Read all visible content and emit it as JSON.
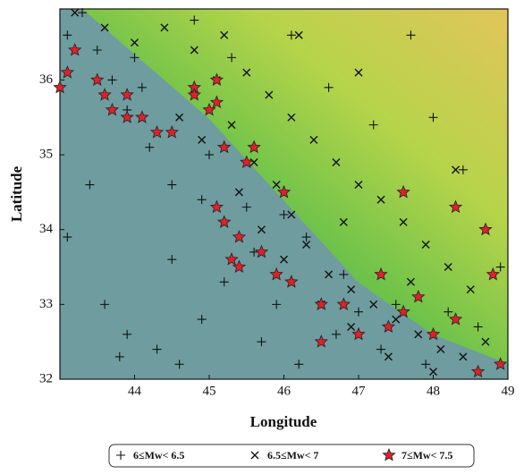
{
  "chart_data": {
    "type": "scatter",
    "xlabel": "Longitude",
    "ylabel": "Latitude",
    "xlim": [
      43,
      49
    ],
    "ylim": [
      32,
      36.95
    ],
    "xticks": [
      44,
      45,
      46,
      47,
      48,
      49
    ],
    "yticks": [
      32,
      33,
      34,
      35,
      36
    ],
    "legend": "bottom",
    "series": [
      {
        "name": "6≤Mw< 6.5",
        "marker": "plus",
        "color": "#111111",
        "x": [
          43.1,
          43.3,
          43.5,
          43.7,
          43.9,
          44.2,
          44.5,
          43.4,
          43.1,
          43.6,
          43.8,
          44.3,
          44.6,
          44.9,
          45.2,
          44.5,
          45.6,
          45.9,
          46.2,
          46.7,
          47.3,
          47.9,
          48.6,
          48.9,
          48.4,
          48.0,
          47.2,
          46.6,
          47.7,
          46.1,
          45.3,
          44.8,
          44.0,
          45.0,
          45.5,
          46.3,
          46.8,
          47.5,
          48.2,
          47.0,
          44.9,
          44.1,
          43.9,
          45.7,
          46.0
        ],
        "values": [
          36.6,
          36.9,
          36.4,
          36.0,
          35.6,
          35.1,
          34.6,
          34.6,
          33.9,
          33.0,
          32.3,
          32.4,
          32.2,
          32.8,
          33.3,
          33.6,
          33.7,
          33.0,
          32.2,
          32.6,
          32.4,
          32.2,
          32.7,
          33.5,
          34.8,
          35.5,
          35.4,
          35.9,
          36.6,
          36.6,
          36.3,
          36.8,
          36.3,
          35.0,
          34.3,
          33.9,
          33.4,
          33.0,
          32.9,
          32.9,
          34.4,
          35.9,
          32.6,
          32.5,
          34.2
        ]
      },
      {
        "name": "6.5≤Mw< 7",
        "marker": "cross",
        "color": "#111111",
        "x": [
          43.2,
          43.6,
          44.0,
          44.4,
          44.8,
          45.1,
          45.3,
          45.6,
          45.9,
          46.1,
          46.3,
          46.6,
          46.9,
          47.2,
          47.5,
          47.8,
          48.1,
          48.4,
          48.7,
          48.5,
          48.2,
          47.9,
          47.6,
          47.3,
          47.0,
          46.7,
          46.4,
          46.1,
          45.8,
          45.5,
          45.2,
          44.6,
          44.9,
          45.4,
          45.7,
          46.0,
          46.5,
          46.9,
          47.4,
          48.0,
          46.2,
          47.0,
          48.3,
          47.7,
          46.8
        ],
        "values": [
          36.9,
          36.7,
          36.5,
          36.7,
          36.4,
          36.0,
          35.4,
          34.9,
          34.6,
          34.2,
          33.8,
          33.4,
          33.2,
          33.0,
          32.8,
          32.6,
          32.4,
          32.3,
          32.5,
          33.2,
          33.5,
          33.8,
          34.1,
          34.4,
          34.6,
          34.9,
          35.2,
          35.5,
          35.8,
          36.1,
          36.6,
          35.5,
          35.2,
          34.5,
          34.0,
          33.6,
          33.0,
          32.7,
          32.3,
          32.1,
          36.6,
          36.1,
          34.8,
          33.3,
          34.1
        ]
      },
      {
        "name": "7≤Mw< 7.5",
        "marker": "star",
        "color": "#e0202a",
        "x": [
          43.1,
          43.0,
          43.2,
          43.5,
          43.6,
          43.9,
          43.9,
          44.1,
          43.7,
          44.3,
          44.5,
          44.8,
          44.8,
          45.0,
          45.1,
          45.2,
          45.5,
          45.1,
          45.2,
          45.4,
          45.3,
          45.4,
          45.7,
          45.9,
          46.0,
          46.1,
          46.5,
          46.5,
          46.8,
          47.0,
          47.4,
          47.6,
          47.8,
          48.0,
          48.3,
          48.6,
          48.9,
          48.8,
          48.7,
          48.3,
          47.6,
          47.3,
          45.1,
          45.6
        ],
        "values": [
          36.1,
          35.9,
          36.4,
          36.0,
          35.8,
          35.8,
          35.5,
          35.5,
          35.6,
          35.3,
          35.3,
          35.9,
          35.8,
          35.6,
          35.7,
          35.1,
          34.9,
          34.3,
          34.1,
          33.9,
          33.6,
          33.5,
          33.7,
          33.4,
          34.5,
          33.3,
          33.0,
          32.5,
          33.0,
          32.6,
          32.7,
          32.9,
          33.1,
          32.6,
          32.8,
          32.1,
          32.2,
          33.4,
          34.0,
          34.3,
          34.5,
          33.4,
          36.0,
          35.1
        ]
      }
    ]
  }
}
